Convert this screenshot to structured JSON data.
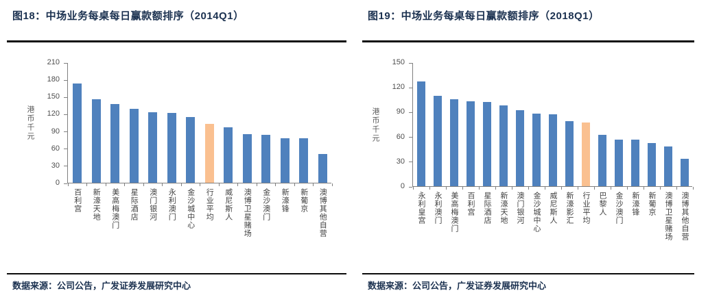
{
  "colors": {
    "bar": "#4F81BD",
    "highlight": "#FAC090",
    "title_text": "#1B3150",
    "axis": "#7F7F7F",
    "tick_text": "#4D4D4D"
  },
  "chart_data": [
    {
      "type": "bar",
      "title": "图18：中场业务每桌每日赢款额排序（2014Q1）",
      "ylabel": "港币千元",
      "xlabel": "",
      "ylim": [
        0,
        210
      ],
      "yticks": [
        0,
        30,
        60,
        90,
        120,
        150,
        180,
        210
      ],
      "grid": false,
      "legend_position": "none",
      "categories": [
        "百利宫",
        "新濠天地",
        "美高梅澳门",
        "星际酒店",
        "澳门银河",
        "永利澳门",
        "金沙城中心",
        "行业平均",
        "威尼斯人",
        "澳博卫星赌场",
        "金沙澳门",
        "新濠锋",
        "新葡京",
        "澳博其他自营"
      ],
      "values": [
        173,
        146,
        137,
        129,
        123,
        122,
        114,
        103,
        97,
        85,
        84,
        78,
        77,
        50
      ],
      "highlight_category": "行业平均",
      "highlight_index": 7,
      "bar_color": "#4F81BD",
      "highlight_color": "#FAC090",
      "source": "数据来源：公司公告，广发证券发展研究中心"
    },
    {
      "type": "bar",
      "title": "图19：中场业务每桌每日赢款额排序（2018Q1）",
      "ylabel": "港币千元",
      "xlabel": "",
      "ylim": [
        0,
        150
      ],
      "yticks": [
        0,
        30,
        60,
        90,
        120,
        150
      ],
      "grid": false,
      "legend_position": "none",
      "categories": [
        "永利皇宫",
        "永利澳门",
        "美高梅澳门",
        "百利宫",
        "星际酒店",
        "新濠天地",
        "澳门银河",
        "金沙城中心",
        "威尼斯人",
        "新濠影汇",
        "行业平均",
        "巴黎人",
        "金沙澳门",
        "新濠锋",
        "新葡京",
        "澳博卫星赌场",
        "澳博其他自营"
      ],
      "values": [
        127,
        109,
        105,
        103,
        102,
        98,
        92,
        88,
        87,
        79,
        77,
        62,
        56,
        56,
        52,
        48,
        33
      ],
      "highlight_category": "行业平均",
      "highlight_index": 10,
      "bar_color": "#4F81BD",
      "highlight_color": "#FAC090",
      "source": "数据来源：公司公告，广发证券发展研究中心"
    }
  ]
}
